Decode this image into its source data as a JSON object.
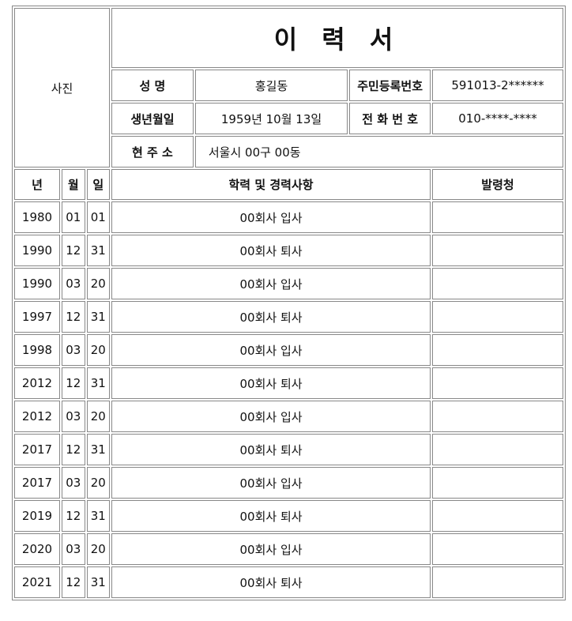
{
  "document": {
    "title": "이 력 서",
    "photo_label": "사진"
  },
  "personal": {
    "name_label": "성 명",
    "name_value": "홍길동",
    "id_label": "주민등록번호",
    "id_value": "591013-2******",
    "birth_label": "생년월일",
    "birth_value": "1959년 10월 13일",
    "phone_label": "전 화 번 호",
    "phone_value": "010-****-****",
    "address_label": "현 주 소",
    "address_value": "서울시 00구 00동"
  },
  "history_headers": {
    "year": "년",
    "month": "월",
    "day": "일",
    "description": "학력 및 경력사항",
    "issuer": "발령청"
  },
  "history": [
    {
      "year": "1980",
      "month": "01",
      "day": "01",
      "description": "00회사 입사",
      "issuer": ""
    },
    {
      "year": "1990",
      "month": "12",
      "day": "31",
      "description": "00회사 퇴사",
      "issuer": ""
    },
    {
      "year": "1990",
      "month": "03",
      "day": "20",
      "description": "00회사 입사",
      "issuer": ""
    },
    {
      "year": "1997",
      "month": "12",
      "day": "31",
      "description": "00회사 퇴사",
      "issuer": ""
    },
    {
      "year": "1998",
      "month": "03",
      "day": "20",
      "description": "00회사 입사",
      "issuer": ""
    },
    {
      "year": "2012",
      "month": "12",
      "day": "31",
      "description": "00회사 퇴사",
      "issuer": ""
    },
    {
      "year": "2012",
      "month": "03",
      "day": "20",
      "description": "00회사 입사",
      "issuer": ""
    },
    {
      "year": "2017",
      "month": "12",
      "day": "31",
      "description": "00회사 퇴사",
      "issuer": ""
    },
    {
      "year": "2017",
      "month": "03",
      "day": "20",
      "description": "00회사 입사",
      "issuer": ""
    },
    {
      "year": "2019",
      "month": "12",
      "day": "31",
      "description": "00회사 퇴사",
      "issuer": ""
    },
    {
      "year": "2020",
      "month": "03",
      "day": "20",
      "description": "00회사 입사",
      "issuer": ""
    },
    {
      "year": "2021",
      "month": "12",
      "day": "31",
      "description": "00회사 퇴사",
      "issuer": ""
    }
  ]
}
